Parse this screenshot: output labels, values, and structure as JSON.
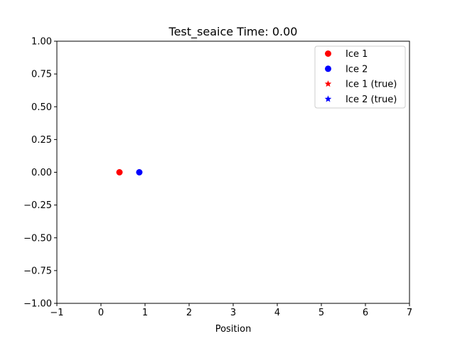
{
  "chart_data": {
    "type": "scatter",
    "title": "Test_seaice Time: 0.00",
    "xlabel": "Position",
    "ylabel": "",
    "xlim": [
      -1,
      7
    ],
    "ylim": [
      -1,
      1
    ],
    "xticks": [
      -1,
      0,
      1,
      2,
      3,
      4,
      5,
      6,
      7
    ],
    "xtick_labels": [
      "−1",
      "0",
      "1",
      "2",
      "3",
      "4",
      "5",
      "6",
      "7"
    ],
    "yticks": [
      1.0,
      0.75,
      0.5,
      0.25,
      0.0,
      -0.25,
      -0.5,
      -0.75,
      -1.0
    ],
    "ytick_labels": [
      "1.00",
      "0.75",
      "0.50",
      "0.25",
      "0.00",
      "−0.25",
      "−0.50",
      "−0.75",
      "−1.00"
    ],
    "grid": false,
    "legend_position": "upper-right",
    "series": [
      {
        "name": "Ice 1",
        "marker": "circle",
        "color": "#ff0000",
        "x": [
          0.42
        ],
        "y": [
          0.0
        ]
      },
      {
        "name": "Ice 2",
        "marker": "circle",
        "color": "#0000ff",
        "x": [
          0.87
        ],
        "y": [
          0.0
        ]
      },
      {
        "name": "Ice 1 (true)",
        "marker": "star",
        "color": "#ff0000",
        "x": [],
        "y": []
      },
      {
        "name": "Ice 2 (true)",
        "marker": "star",
        "color": "#0000ff",
        "x": [],
        "y": []
      }
    ]
  }
}
